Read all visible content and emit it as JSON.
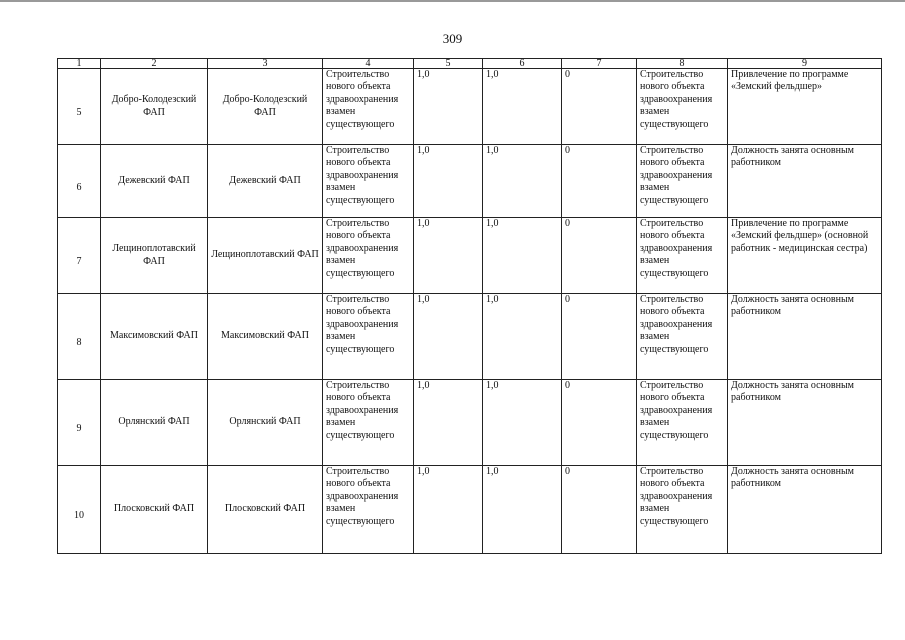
{
  "page_number": "309",
  "table": {
    "headers": [
      "1",
      "2",
      "3",
      "4",
      "5",
      "6",
      "7",
      "8",
      "9"
    ],
    "rows": [
      {
        "num": "5",
        "name": "Добро-Колодезский ФАП",
        "object": "Добро-Колодезский ФАП",
        "action": "Строительство нового объекта здравоохранения взамен существующего",
        "c5": "1,0",
        "c6": "1,0",
        "c7": "0",
        "c8": "Строительство нового объекта здравоохранения взамен существующего",
        "c9": "Привлечение по программе «Земский фельдшер»"
      },
      {
        "num": "6",
        "name": "Дежевский ФАП",
        "object": "Дежевский ФАП",
        "action": "Строительство нового объекта здравоохранения взамен существующего",
        "c5": "1,0",
        "c6": "1,0",
        "c7": "0",
        "c8": "Строительство нового объекта здравоохранения взамен существующего",
        "c9": "Должность занята основным работником"
      },
      {
        "num": "7",
        "name": "Лещиноплотавский ФАП",
        "object": "Лещиноплотавский ФАП",
        "action": "Строительство нового объекта здравоохранения взамен существующего",
        "c5": "1,0",
        "c6": "1,0",
        "c7": "0",
        "c8": "Строительство нового объекта здравоохранения взамен существующего",
        "c9": "Привлечение по программе «Земский фельдшер» (основной работник - медицинская сестра)"
      },
      {
        "num": "8",
        "name": "Максимовский ФАП",
        "object": "Максимовский ФАП",
        "action": "Строительство нового объекта здравоохранения взамен существующего",
        "c5": "1,0",
        "c6": "1,0",
        "c7": "0",
        "c8": "Строительство нового объекта здравоохранения взамен существующего",
        "c9": "Должность занята основным работником"
      },
      {
        "num": "9",
        "name": "Орлянский ФАП",
        "object": "Орлянский ФАП",
        "action": "Строительство нового объекта здравоохранения взамен существующего",
        "c5": "1,0",
        "c6": "1,0",
        "c7": "0",
        "c8": "Строительство нового объекта здравоохранения взамен существующего",
        "c9": "Должность занята основным работником"
      },
      {
        "num": "10",
        "name": "Плосковский ФАП",
        "object": "Плосковский ФАП",
        "action": "Строительство нового объекта здравоохранения взамен существующего",
        "c5": "1,0",
        "c6": "1,0",
        "c7": "0",
        "c8": "Строительство нового объекта здравоохранения взамен существующего",
        "c9": "Должность занята основным работником"
      }
    ]
  }
}
